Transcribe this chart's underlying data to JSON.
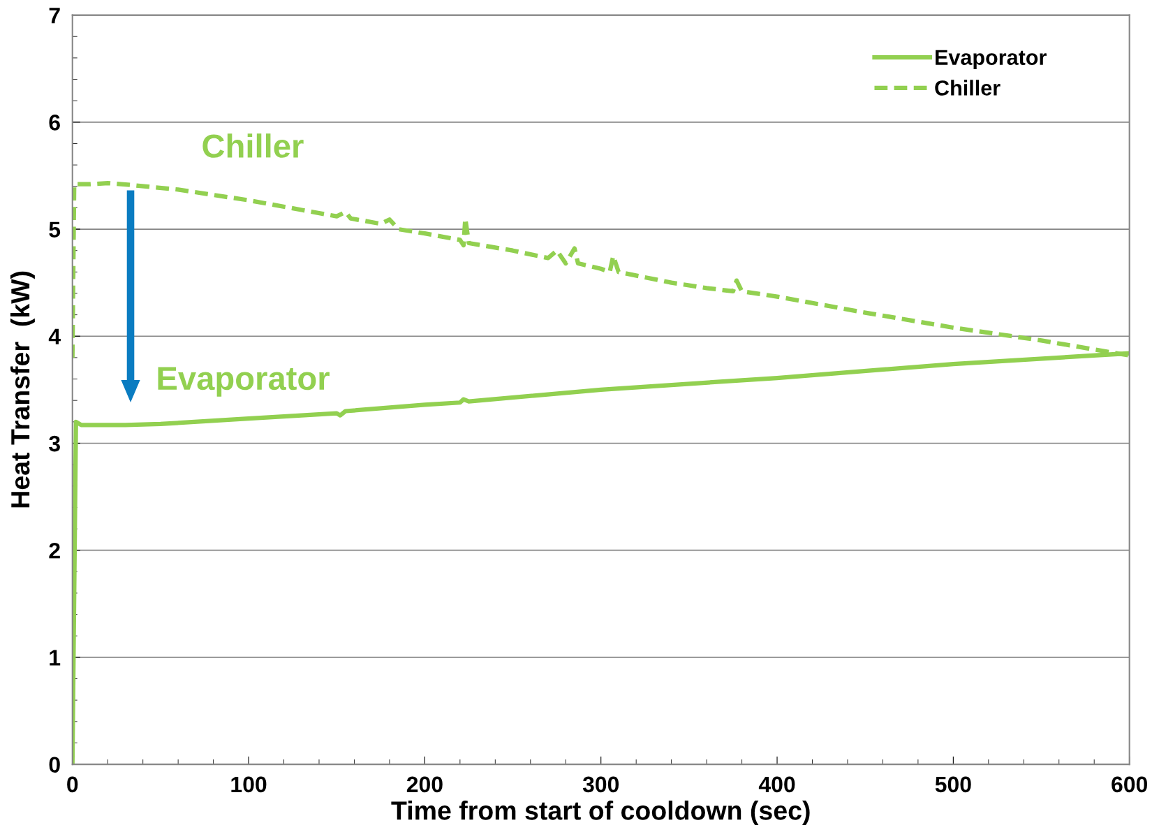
{
  "chart_data": {
    "type": "line",
    "xlabel": "Time from start of cooldown (sec)",
    "ylabel": "Heat Transfer  (kW)",
    "xlim": [
      0,
      600
    ],
    "xticks": [
      0,
      100,
      200,
      300,
      400,
      500,
      600
    ],
    "ylim": [
      0,
      7
    ],
    "yticks": [
      0,
      1,
      2,
      3,
      4,
      5,
      6,
      7
    ],
    "grid": "y",
    "legend": "top right",
    "marker": "none",
    "series": [
      {
        "name": "Evaporator",
        "color": "#92d050",
        "line_style": "solid",
        "x": [
          0,
          2,
          5,
          30,
          50,
          100,
          150,
          152,
          155,
          200,
          220,
          222,
          225,
          300,
          400,
          500,
          600
        ],
        "values": [
          0,
          3.2,
          3.17,
          3.17,
          3.18,
          3.23,
          3.28,
          3.26,
          3.3,
          3.36,
          3.38,
          3.41,
          3.39,
          3.5,
          3.61,
          3.74,
          3.84
        ]
      },
      {
        "name": "Chiller",
        "color": "#92d050",
        "line_style": "dashed",
        "x": [
          0,
          1,
          10,
          20,
          35,
          60,
          100,
          130,
          150,
          155,
          158,
          175,
          180,
          185,
          200,
          220,
          222,
          223,
          225,
          250,
          270,
          275,
          280,
          285,
          287,
          300,
          305,
          307,
          310,
          340,
          360,
          375,
          377,
          380,
          400,
          450,
          500,
          550,
          600
        ],
        "values": [
          3.8,
          5.42,
          5.42,
          5.43,
          5.41,
          5.37,
          5.27,
          5.18,
          5.12,
          5.16,
          5.1,
          5.05,
          5.09,
          5.0,
          4.96,
          4.9,
          4.85,
          5.1,
          4.87,
          4.8,
          4.73,
          4.8,
          4.68,
          4.82,
          4.68,
          4.63,
          4.6,
          4.75,
          4.6,
          4.5,
          4.45,
          4.42,
          4.52,
          4.42,
          4.37,
          4.22,
          4.08,
          3.96,
          3.82
        ]
      }
    ],
    "annotations": [
      "Chiller",
      "Evaporator"
    ]
  }
}
